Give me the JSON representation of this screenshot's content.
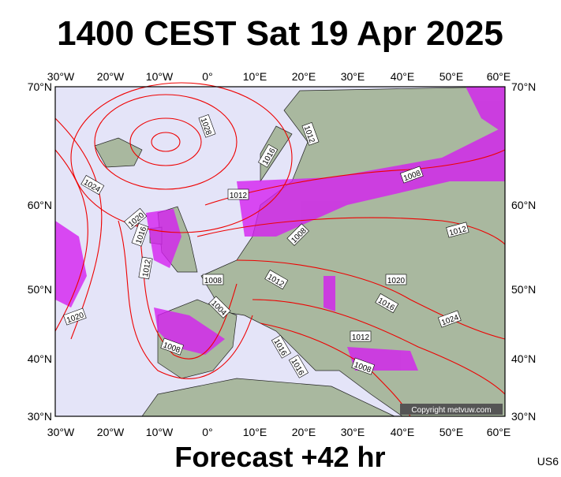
{
  "header": {
    "title": "1400 CEST Sat 19 Apr 2025"
  },
  "map": {
    "lon_ticks": [
      "30°W",
      "20°W",
      "10°W",
      "0°",
      "10°E",
      "20°E",
      "30°E",
      "40°E",
      "50°E",
      "60°E"
    ],
    "lat_ticks": [
      "70°N",
      "60°N",
      "50°N",
      "40°N",
      "30°N"
    ],
    "isobar_labels": [
      "1028",
      "1024",
      "1020",
      "1016",
      "1012",
      "1020",
      "1008",
      "1004",
      "1008",
      "1012",
      "1016",
      "1012",
      "1008",
      "1012",
      "1008",
      "1012",
      "1020",
      "1016",
      "1024",
      "1012",
      "1008",
      "1016",
      "1016"
    ],
    "copyright": "Copyright metvuw.com"
  },
  "footer": {
    "forecast": "Forecast +42 hr",
    "code": "US6"
  }
}
